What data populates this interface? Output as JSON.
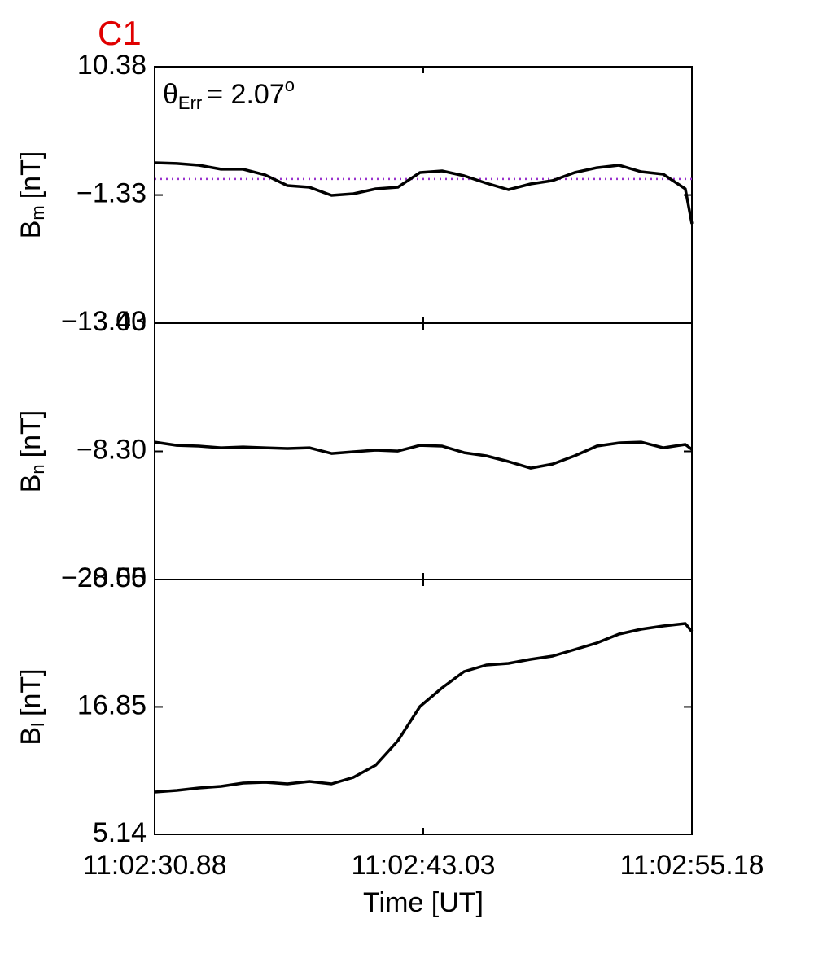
{
  "chart_data": [
    {
      "type": "line",
      "title": "C1",
      "annotation": {
        "symbol": "θ",
        "subscript": "Err",
        "text": "=  2.07",
        "superscript": "o"
      },
      "ylabel": {
        "text": "B",
        "subscript": "m",
        "unit": "[nT]"
      },
      "x": [
        30.88,
        31.88,
        32.88,
        33.88,
        34.88,
        35.88,
        36.88,
        37.88,
        38.88,
        39.88,
        40.88,
        41.88,
        42.88,
        43.88,
        44.88,
        45.88,
        46.88,
        47.88,
        48.88,
        49.88,
        50.88,
        51.88,
        52.88,
        53.88,
        54.88,
        55.18
      ],
      "series": [
        {
          "color": "#000000",
          "values": [
            1.61,
            1.54,
            1.39,
            1.02,
            1.02,
            0.5,
            -0.47,
            -0.62,
            -1.36,
            -1.21,
            -0.77,
            -0.62,
            0.72,
            0.87,
            0.42,
            -0.25,
            -0.84,
            -0.32,
            -0.02,
            0.72,
            1.16,
            1.39,
            0.79,
            0.57,
            -0.77,
            -3.96
          ]
        }
      ],
      "hline": {
        "value": 0.13,
        "color": "#9932cc",
        "style": "dotted"
      },
      "xlim": [
        30.88,
        55.18
      ],
      "ylim": [
        -13.03,
        10.38
      ],
      "yticks": [
        {
          "value": -13.03,
          "label": "−13.03"
        },
        {
          "value": -1.33,
          "label": "−1.33"
        },
        10.38
      ]
    },
    {
      "type": "line",
      "ylabel": {
        "text": "B",
        "subscript": "n",
        "unit": "[nT]"
      },
      "x": [
        30.88,
        31.88,
        32.88,
        33.88,
        34.88,
        35.88,
        36.88,
        37.88,
        38.88,
        39.88,
        40.88,
        41.88,
        42.88,
        43.88,
        44.88,
        45.88,
        46.88,
        47.88,
        48.88,
        49.88,
        50.88,
        51.88,
        52.88,
        53.88,
        54.88,
        55.18
      ],
      "series": [
        {
          "color": "#000000",
          "values": [
            -7.45,
            -7.75,
            -7.82,
            -7.97,
            -7.9,
            -7.97,
            -8.04,
            -7.97,
            -8.49,
            -8.34,
            -8.19,
            -8.27,
            -7.75,
            -7.82,
            -8.42,
            -8.71,
            -9.23,
            -9.83,
            -9.46,
            -8.71,
            -7.82,
            -7.53,
            -7.45,
            -7.97,
            -7.67,
            -8.12
          ]
        }
      ],
      "xlim": [
        30.88,
        55.18
      ],
      "ylim": [
        -20,
        3.4
      ],
      "yticks": [
        {
          "value": -20,
          "label": "−20.00"
        },
        {
          "value": -8.3,
          "label": "−8.30"
        },
        {
          "value": 3.4,
          "label": "3.40"
        }
      ]
    },
    {
      "type": "line",
      "ylabel": {
        "text": "B",
        "subscript": "l",
        "unit": "[nT]"
      },
      "xlabel": "Time [UT]",
      "x": [
        30.88,
        31.88,
        32.88,
        33.88,
        34.88,
        35.88,
        36.88,
        37.88,
        38.88,
        39.88,
        40.88,
        41.88,
        42.88,
        43.88,
        44.88,
        45.88,
        46.88,
        47.88,
        48.88,
        49.88,
        50.88,
        51.88,
        52.88,
        53.88,
        54.88,
        55.18
      ],
      "series": [
        {
          "color": "#000000",
          "values": [
            9.03,
            9.18,
            9.4,
            9.55,
            9.85,
            9.93,
            9.78,
            10.0,
            9.78,
            10.38,
            11.5,
            13.74,
            16.88,
            18.6,
            20.1,
            20.7,
            20.85,
            21.22,
            21.52,
            22.12,
            22.72,
            23.54,
            23.99,
            24.29,
            24.51,
            23.76
          ]
        }
      ],
      "xlim": [
        30.88,
        55.18
      ],
      "xticks": [
        {
          "value": 30.88,
          "label": "11:02:30.88"
        },
        {
          "value": 43.03,
          "label": "11:02:43.03"
        },
        {
          "value": 55.18,
          "label": "11:02:55.18"
        }
      ],
      "ylim": [
        5.14,
        28.55
      ],
      "yticks": [
        5.14,
        16.85,
        28.55
      ]
    }
  ]
}
